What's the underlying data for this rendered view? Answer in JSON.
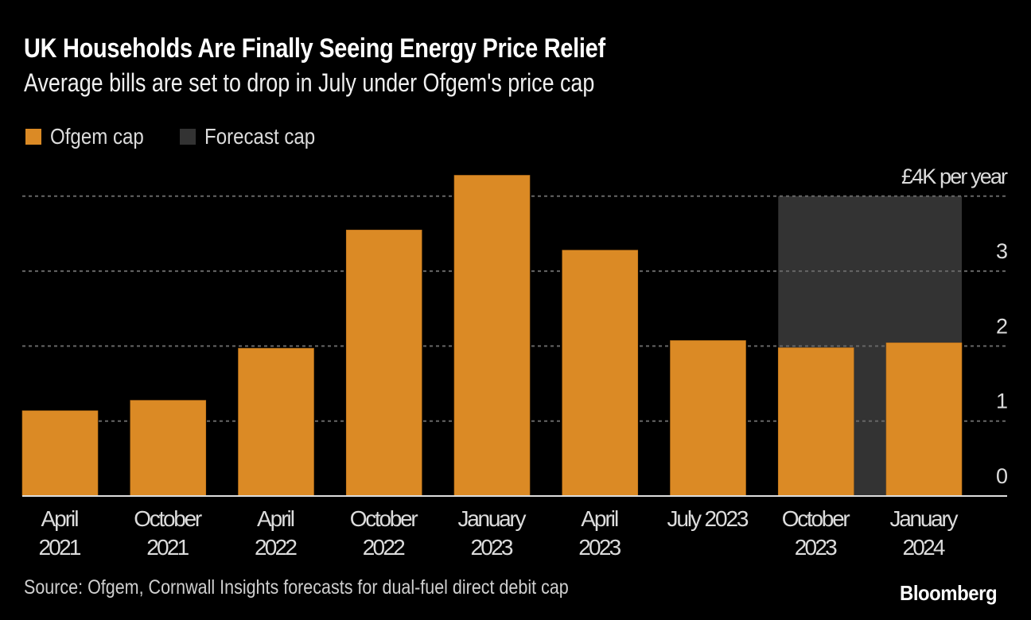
{
  "header": {
    "title": "UK Households Are Finally Seeing Energy Price Relief",
    "subtitle": "Average bills are set to drop in July under Ofgem's price cap"
  },
  "legend": [
    {
      "label": "Ofgem cap",
      "color": "#db8a25"
    },
    {
      "label": "Forecast cap",
      "color": "#333333"
    }
  ],
  "footer": {
    "source": "Source: Ofgem, Cornwall Insights forecasts for dual-fuel direct debit cap",
    "brand": "Bloomberg"
  },
  "colors": {
    "background": "#000000",
    "ofgem_bar": "#db8a25",
    "forecast_region": "#333333",
    "gridline": "#666666",
    "baseline": "#dddddd",
    "axis_text": "#dcdcdc"
  },
  "chart_data": {
    "type": "bar",
    "title": "UK Households Are Finally Seeing Energy Price Relief",
    "subtitle": "Average bills are set to drop in July under Ofgem's price cap",
    "xlabel": "",
    "ylabel": "£K per year",
    "categories": [
      [
        "April",
        "2021"
      ],
      [
        "October",
        "2021"
      ],
      [
        "April",
        "2022"
      ],
      [
        "October",
        "2022"
      ],
      [
        "January",
        "2023"
      ],
      [
        "April",
        "2023"
      ],
      [
        "July 2023"
      ],
      [
        "October",
        "2023"
      ],
      [
        "January",
        "2024"
      ]
    ],
    "series": [
      {
        "name": "Ofgem cap",
        "values": [
          1.138,
          1.277,
          1.971,
          3.549,
          4.279,
          3.28,
          2.074,
          1.978,
          2.044
        ]
      }
    ],
    "forecast_region": {
      "name": "Forecast cap",
      "start_category": 7,
      "end_category": 8,
      "top_value": 4
    },
    "ylim": [
      0,
      4.5
    ],
    "yticks": [
      {
        "value": 0,
        "label": "0"
      },
      {
        "value": 1,
        "label": "1"
      },
      {
        "value": 2,
        "label": "2"
      },
      {
        "value": 3,
        "label": "3"
      },
      {
        "value": 4,
        "label": "£4K per year"
      }
    ],
    "grid": true,
    "legend_position": "top-left",
    "y_axis_position": "right"
  }
}
